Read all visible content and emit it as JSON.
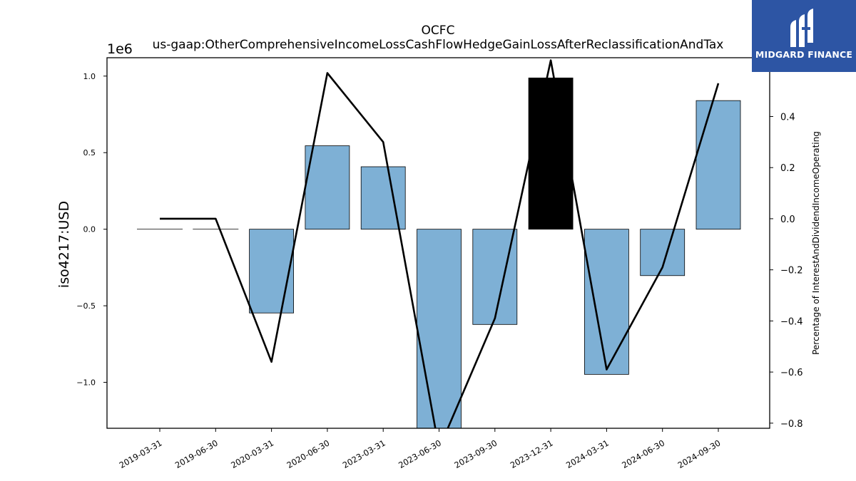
{
  "chart_data": {
    "type": "bar",
    "title": "OCFC",
    "subtitle": "us-gaap:OtherComprehensiveIncomeLossCashFlowHedgeGainLossAfterReclassificationAndTax",
    "ylabel": "iso4217:USD",
    "y_offset_label": "1e6",
    "y2label": "Percentage of InterestAndDividendIncomeOperating",
    "categories": [
      "2019-03-31",
      "2019-06-30",
      "2020-03-31",
      "2020-06-30",
      "2023-03-31",
      "2023-06-30",
      "2023-09-30",
      "2023-12-31",
      "2024-03-31",
      "2024-06-30",
      "2024-09-30"
    ],
    "series": [
      {
        "axis": "left",
        "kind": "bar",
        "values": [
          0,
          0,
          -547000,
          545000,
          408000,
          -1310000,
          -622000,
          988000,
          -948000,
          -303000,
          840000
        ],
        "colors": [
          "#7eb0d5",
          "#7eb0d5",
          "#7eb0d5",
          "#7eb0d5",
          "#7eb0d5",
          "#7eb0d5",
          "#7eb0d5",
          "#000000",
          "#7eb0d5",
          "#7eb0d5",
          "#7eb0d5"
        ]
      },
      {
        "axis": "right",
        "kind": "line",
        "values": [
          0.0,
          0.0,
          -0.56,
          0.57,
          0.3,
          -0.9,
          -0.39,
          0.62,
          -0.59,
          -0.19,
          0.53
        ],
        "color": "#000000"
      }
    ],
    "ylim": [
      -1300000,
      1120000
    ],
    "y2lim": [
      -0.82,
      0.63
    ],
    "yticks": [
      1000000,
      500000,
      0,
      -500000,
      -1000000
    ],
    "ytick_labels": [
      "1.0",
      "0.5",
      "0.0",
      "−0.5",
      "−1.0"
    ],
    "y2ticks": [
      0.6,
      0.4,
      0.2,
      0.0,
      -0.2,
      -0.4,
      -0.6,
      -0.8
    ],
    "y2tick_labels": [
      "0.6",
      "0.4",
      "0.2",
      "0.0",
      "−0.2",
      "−0.4",
      "−0.6",
      "−0.8"
    ],
    "grid": false,
    "legend": "none"
  },
  "logo": {
    "text": "MIDGARD FINANCE",
    "icon": "midgard-logo-icon",
    "background": "#2d55a4"
  }
}
